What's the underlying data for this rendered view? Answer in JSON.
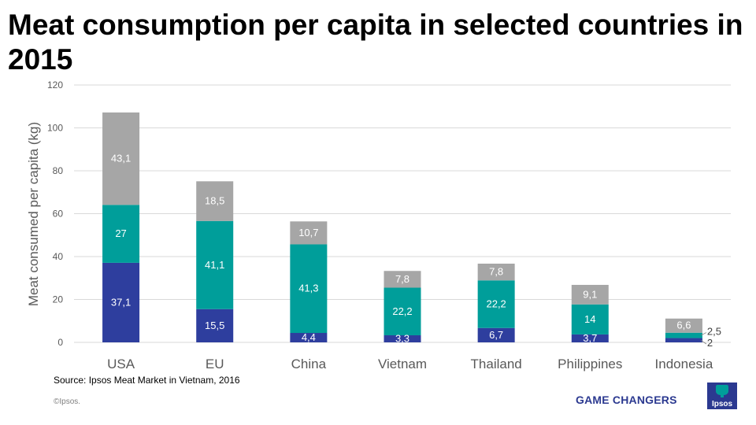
{
  "title": "Meat consumption per capita in selected countries in 2015",
  "source": "Source: Ipsos Meat Market in Vietnam, 2016",
  "copyright": "©Ipsos.",
  "tagline": "GAME CHANGERS",
  "logo_text": "Ipsos",
  "colors": {
    "series_bottom": "#2e3e9e",
    "series_middle": "#009e9a",
    "series_top": "#a6a6a6",
    "gridline": "#d9d9d9",
    "axis_text": "#595959",
    "brand": "#2b3990"
  },
  "chart_data": {
    "type": "bar",
    "stacked": true,
    "title": "",
    "xlabel": "",
    "ylabel": "Meat consumed per capita (kg)",
    "ylim": [
      0,
      120
    ],
    "yticks": [
      0,
      20,
      40,
      60,
      80,
      100,
      120
    ],
    "grid": true,
    "legend": "none",
    "categories": [
      "USA",
      "EU",
      "China",
      "Vietnam",
      "Thailand",
      "Philippines",
      "Indonesia"
    ],
    "series": [
      {
        "values": [
          37.1,
          15.5,
          4.4,
          3.3,
          6.7,
          3.7,
          2.0
        ],
        "labels": [
          "37,1",
          "15,5",
          "4,4",
          "3,3",
          "6,7",
          "3,7",
          "2"
        ]
      },
      {
        "values": [
          27.0,
          41.1,
          41.3,
          22.2,
          22.2,
          14.0,
          2.5
        ],
        "labels": [
          "27",
          "41,1",
          "41,3",
          "22,2",
          "22,2",
          "14",
          "2,5"
        ]
      },
      {
        "values": [
          43.1,
          18.5,
          10.7,
          7.8,
          7.8,
          9.1,
          6.6
        ],
        "labels": [
          "43,1",
          "18,5",
          "10,7",
          "7,8",
          "7,8",
          "9,1",
          "6,6"
        ]
      }
    ]
  }
}
